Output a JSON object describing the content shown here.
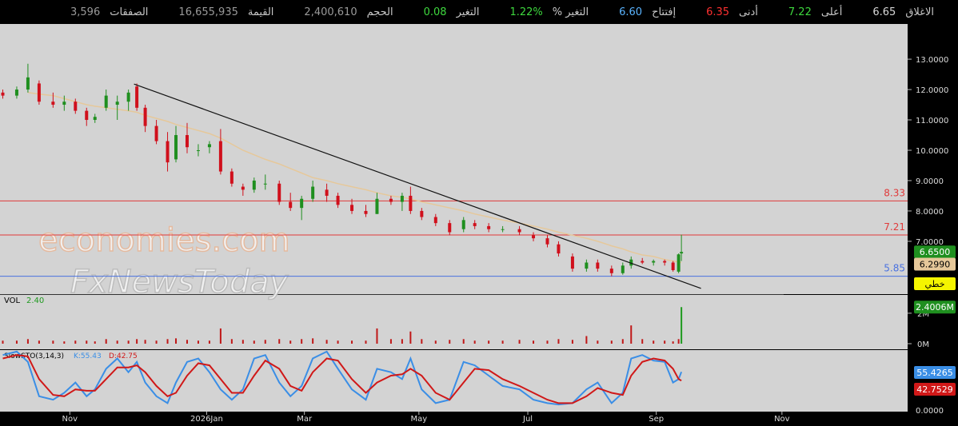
{
  "header": {
    "stats": [
      {
        "label": "الاغلاق",
        "value": "6.65",
        "color": "#d8d8d8"
      },
      {
        "label": "أعلى",
        "value": "7.22",
        "color": "#3ed83e"
      },
      {
        "label": "أدنى",
        "value": "6.35",
        "color": "#ff3030"
      },
      {
        "label": "إفتتاح",
        "value": "6.60",
        "color": "#5ab4ff"
      },
      {
        "label": "التغير %",
        "value": "1.22%",
        "color": "#3ed83e"
      },
      {
        "label": "التغير",
        "value": "0.08",
        "color": "#3ed83e"
      },
      {
        "label": "الحجم",
        "value": "2,400,610",
        "color": "#9a9a9a"
      },
      {
        "label": "القيمة",
        "value": "16,655,935",
        "color": "#9a9a9a"
      },
      {
        "label": "الصفقات",
        "value": "3,596",
        "color": "#9a9a9a"
      }
    ],
    "watermark": [
      "economies.com",
      "FxNewsToday"
    ]
  },
  "chart_data": {
    "type": "candlestick",
    "x": [
      -24,
      -19,
      -15,
      -11,
      -6,
      -2,
      2,
      6,
      9,
      13,
      17,
      21,
      24,
      27,
      31,
      35,
      38,
      42,
      46,
      50,
      54,
      58,
      62,
      66,
      70,
      75,
      79,
      83,
      87,
      92,
      96,
      101,
      106,
      110,
      115,
      119,
      122,
      126,
      131,
      136,
      141,
      145,
      150,
      155,
      161,
      166,
      171,
      175,
      180,
      185,
      189,
      194,
      198,
      201,
      205,
      209,
      213,
      216,
      218,
      219
    ],
    "open": [
      11.9,
      11.8,
      12.0,
      12.2,
      11.6,
      11.5,
      11.6,
      11.3,
      11.0,
      11.4,
      11.5,
      11.6,
      12.1,
      11.4,
      10.8,
      10.3,
      9.7,
      10.5,
      10.0,
      10.1,
      10.3,
      9.3,
      8.8,
      8.7,
      8.9,
      8.9,
      8.3,
      8.1,
      8.4,
      8.7,
      8.5,
      8.2,
      8.0,
      7.9,
      8.4,
      8.3,
      8.5,
      8.0,
      7.8,
      7.6,
      7.4,
      7.6,
      7.5,
      7.4,
      7.4,
      7.2,
      7.1,
      6.9,
      6.5,
      6.1,
      6.3,
      6.1,
      5.95,
      6.2,
      6.35,
      6.3,
      6.35,
      6.3,
      6.0,
      6.6
    ],
    "high": [
      12.0,
      12.1,
      12.85,
      12.3,
      11.9,
      11.8,
      11.7,
      11.4,
      11.2,
      12.0,
      11.8,
      12.0,
      12.2,
      11.5,
      11.0,
      10.6,
      10.8,
      10.9,
      10.2,
      10.3,
      10.7,
      9.4,
      8.9,
      9.1,
      9.2,
      9.0,
      8.6,
      8.5,
      9.0,
      8.9,
      8.6,
      8.4,
      8.2,
      8.6,
      8.5,
      8.6,
      8.8,
      8.1,
      7.9,
      7.7,
      7.8,
      7.7,
      7.6,
      7.5,
      7.5,
      7.3,
      7.2,
      7.0,
      6.6,
      6.4,
      6.4,
      6.2,
      6.3,
      6.5,
      6.45,
      6.4,
      6.4,
      6.35,
      6.6,
      7.22
    ],
    "low": [
      11.7,
      11.7,
      11.9,
      11.5,
      11.4,
      11.3,
      11.2,
      10.8,
      10.9,
      11.3,
      11.0,
      11.3,
      11.3,
      10.6,
      10.2,
      9.3,
      9.6,
      9.9,
      9.8,
      9.9,
      9.2,
      8.8,
      8.5,
      8.6,
      8.7,
      8.2,
      8.0,
      7.7,
      8.3,
      8.3,
      8.1,
      7.9,
      7.8,
      7.9,
      8.2,
      8.0,
      7.9,
      7.7,
      7.5,
      7.2,
      7.3,
      7.4,
      7.3,
      7.3,
      7.2,
      7.0,
      6.8,
      6.5,
      6.0,
      6.0,
      6.0,
      5.85,
      5.9,
      6.1,
      6.25,
      6.2,
      6.2,
      6.0,
      5.95,
      6.35
    ],
    "close": [
      11.8,
      12.0,
      12.4,
      11.6,
      11.5,
      11.6,
      11.3,
      11.0,
      11.1,
      11.8,
      11.6,
      11.9,
      11.4,
      10.8,
      10.3,
      9.6,
      10.5,
      10.1,
      10.0,
      10.2,
      9.3,
      8.9,
      8.7,
      9.0,
      8.9,
      8.3,
      8.1,
      8.4,
      8.8,
      8.5,
      8.2,
      8.0,
      7.9,
      8.4,
      8.3,
      8.5,
      8.0,
      7.8,
      7.6,
      7.3,
      7.7,
      7.5,
      7.4,
      7.4,
      7.3,
      7.1,
      6.9,
      6.6,
      6.1,
      6.3,
      6.1,
      5.95,
      6.2,
      6.4,
      6.3,
      6.35,
      6.3,
      6.05,
      6.57,
      6.65
    ],
    "up_color": "#1f8f1f",
    "down_color": "#d0101c",
    "xlim": [
      -25,
      300
    ],
    "xticks": [
      {
        "value": 0,
        "label": "Nov"
      },
      {
        "value": 49,
        "label": "2026Jan"
      },
      {
        "value": 84,
        "label": "Mar"
      },
      {
        "value": 125,
        "label": "May"
      },
      {
        "value": 164,
        "label": "Jul"
      },
      {
        "value": 210,
        "label": "Sep"
      },
      {
        "value": 255,
        "label": "Nov"
      }
    ],
    "ylim": [
      5.26,
      14.16
    ],
    "yticks": [
      {
        "value": 7,
        "label": "7.0000"
      },
      {
        "value": 8,
        "label": "8.0000"
      },
      {
        "value": 9,
        "label": "9.0000"
      },
      {
        "value": 10,
        "label": "10.0000"
      },
      {
        "value": 11,
        "label": "11.0000"
      },
      {
        "value": 12,
        "label": "12.0000"
      },
      {
        "value": 13,
        "label": "13.0000"
      }
    ],
    "last_price_label": "6.6500",
    "chart_style_label": "خطي",
    "moving_average": {
      "color": "#e6c89a",
      "value_label": "6.2990",
      "values": [
        null,
        null,
        11.9,
        11.85,
        11.8,
        11.7,
        11.6,
        11.5,
        11.45,
        11.4,
        11.35,
        11.3,
        11.25,
        11.15,
        11.05,
        10.95,
        10.85,
        10.75,
        10.65,
        10.55,
        10.4,
        10.2,
        10.0,
        9.85,
        9.7,
        9.55,
        9.4,
        9.25,
        9.1,
        9.0,
        8.9,
        8.8,
        8.7,
        8.6,
        8.5,
        8.45,
        8.4,
        8.3,
        8.2,
        8.1,
        8.0,
        7.9,
        7.8,
        7.7,
        7.6,
        7.5,
        7.4,
        7.3,
        7.2,
        7.1,
        7.0,
        6.85,
        6.75,
        6.65,
        6.55,
        6.5,
        6.4,
        6.35,
        6.32,
        6.299
      ]
    },
    "trendline": {
      "x": [
        23,
        226
      ],
      "y": [
        12.18,
        5.45
      ],
      "color": "#111111"
    },
    "levels": [
      {
        "value": 8.33,
        "color": "#e03a3a"
      },
      {
        "value": 7.21,
        "color": "#e03a3a"
      },
      {
        "value": 5.85,
        "color": "#4a72e0"
      }
    ],
    "volume": {
      "title": "VOL",
      "title_value": "2.40",
      "last_label": "2.4006M",
      "color": "#c01818",
      "last_color": "#1f9a1f",
      "ylim": [
        0,
        3.2
      ],
      "yticks": [
        {
          "value": 0,
          "label": "0M"
        },
        {
          "value": 2,
          "label": "2M"
        }
      ],
      "values": [
        0.2,
        0.2,
        0.3,
        0.2,
        0.2,
        0.15,
        0.2,
        0.2,
        0.15,
        0.3,
        0.2,
        0.2,
        0.3,
        0.25,
        0.2,
        0.3,
        0.35,
        0.25,
        0.2,
        0.2,
        1.0,
        0.3,
        0.25,
        0.2,
        0.25,
        0.3,
        0.2,
        0.3,
        0.35,
        0.25,
        0.2,
        0.2,
        0.2,
        1.0,
        0.3,
        0.3,
        0.8,
        0.3,
        0.2,
        0.25,
        0.3,
        0.2,
        0.2,
        0.2,
        0.25,
        0.2,
        0.2,
        0.3,
        0.25,
        0.5,
        0.2,
        0.2,
        0.3,
        1.2,
        0.3,
        0.2,
        0.2,
        0.15,
        0.3,
        2.4006
      ]
    },
    "stochastic": {
      "title": "SlowSTO(3,14,3)",
      "k_label": "K:55.43",
      "d_label": "D:42.75",
      "ylim": [
        0,
        100
      ],
      "yticks": [
        {
          "value": 0,
          "label": "0.0000"
        }
      ],
      "k": {
        "color": "#3a8ee6",
        "last_label": "55.4265",
        "values": [
          80,
          85,
          70,
          20,
          15,
          25,
          40,
          20,
          30,
          60,
          75,
          55,
          70,
          40,
          20,
          10,
          40,
          70,
          75,
          55,
          30,
          15,
          30,
          75,
          80,
          40,
          20,
          35,
          75,
          85,
          60,
          30,
          15,
          60,
          55,
          45,
          75,
          30,
          10,
          15,
          70,
          65,
          50,
          35,
          30,
          15,
          10,
          8,
          10,
          30,
          40,
          10,
          25,
          75,
          80,
          72,
          70,
          40,
          45,
          55.43
        ]
      },
      "d": {
        "color": "#d01818",
        "last_label": "42.7529",
        "values": [
          75,
          80,
          78,
          45,
          22,
          20,
          30,
          28,
          28,
          45,
          62,
          62,
          65,
          55,
          35,
          20,
          25,
          50,
          68,
          65,
          45,
          25,
          25,
          50,
          72,
          60,
          35,
          28,
          55,
          75,
          72,
          45,
          25,
          40,
          50,
          52,
          60,
          50,
          25,
          15,
          40,
          60,
          58,
          45,
          35,
          25,
          15,
          10,
          10,
          20,
          32,
          25,
          22,
          50,
          70,
          75,
          72,
          60,
          45,
          42.75
        ]
      }
    }
  }
}
